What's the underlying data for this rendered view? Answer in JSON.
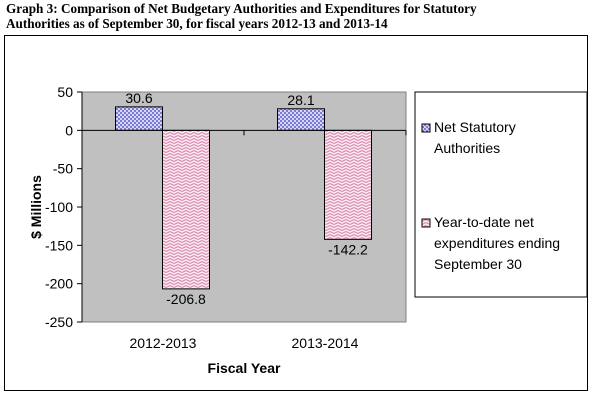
{
  "title": {
    "line1": "Graph 3: Comparison of Net Budgetary Authorities and Expenditures for Statutory",
    "line2": "Authorities as of September 30, for fiscal years 2012-13 and 2013-14"
  },
  "chart_data": {
    "type": "bar",
    "categories": [
      "2012-2013",
      "2013-2014"
    ],
    "series": [
      {
        "name": "Net Statutory Authorities",
        "legend_lines": [
          "Net Statutory",
          "Authorities"
        ],
        "values": [
          30.6,
          28.1
        ],
        "labels": [
          "30.6",
          "28.1"
        ],
        "color": "#8a8ad8",
        "pattern": "blue-checker-icon"
      },
      {
        "name": "Year-to-date net expenditures ending September 30",
        "legend_lines": [
          "Year-to-date net",
          "expenditures ending",
          "September 30"
        ],
        "values": [
          -206.8,
          -142.2
        ],
        "labels": [
          "-206.8",
          "-142.2"
        ],
        "color": "#d66c9c",
        "pattern": "pink-wave-icon"
      }
    ],
    "xlabel": "Fiscal Year",
    "ylabel": "$ Millions",
    "ylim": [
      -250,
      50
    ],
    "yticks": [
      50,
      0,
      -50,
      -100,
      -150,
      -200,
      -250
    ],
    "ytick_labels": [
      "50",
      "0",
      "-50",
      "-100",
      "-150",
      "-200",
      "-250"
    ],
    "grid": false,
    "plot_background": "#c0c0c0",
    "legend_position": "right"
  }
}
